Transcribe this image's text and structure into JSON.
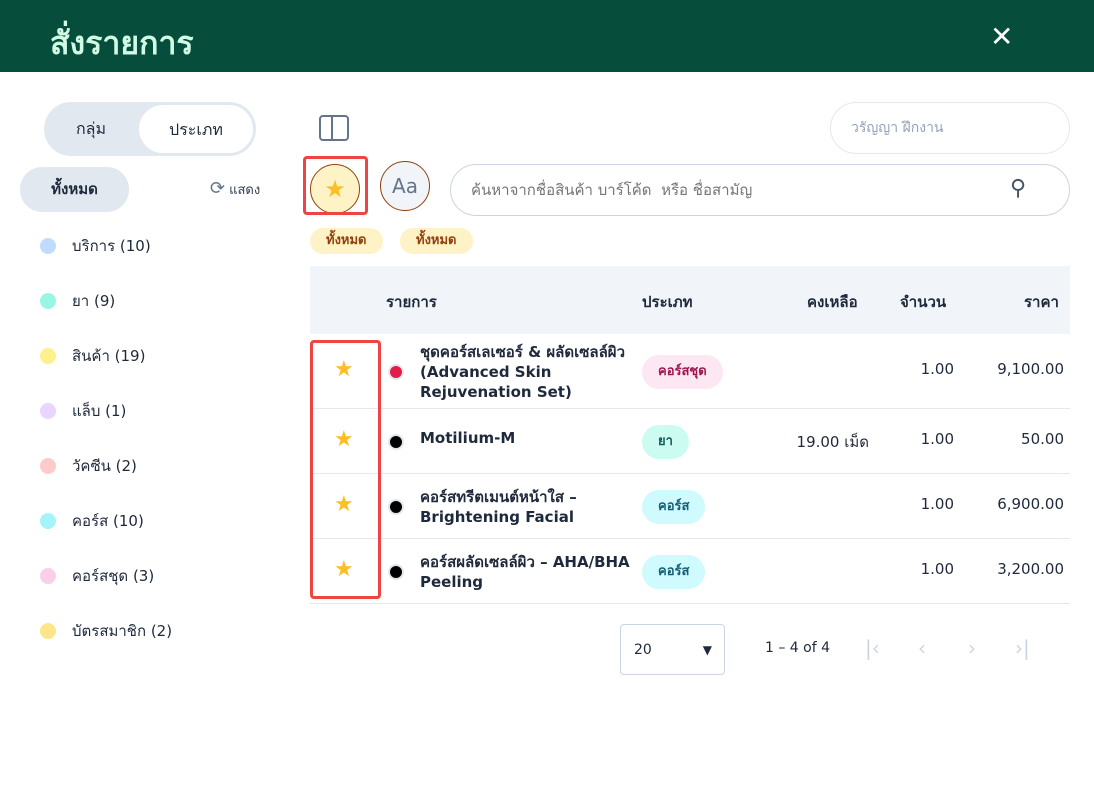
{
  "header": {
    "title": "สั่งรายการ",
    "close_icon": "close-icon"
  },
  "sidebar": {
    "toggle": [
      "กลุ่ม",
      "ประเภท"
    ],
    "all_label": "ทั้งหมด",
    "refresh_label": "แสดง",
    "categories": [
      {
        "label": "บริการ (10)",
        "color": "#bfdbfe"
      },
      {
        "label": "ยา (9)",
        "color": "#99f6e4"
      },
      {
        "label": "สินค้า (19)",
        "color": "#fef08a"
      },
      {
        "label": "แล็บ (1)",
        "color": "#e9d5ff"
      },
      {
        "label": "วัคซีน (2)",
        "color": "#fecaca"
      },
      {
        "label": "คอร์ส (10)",
        "color": "#a5f3fc"
      },
      {
        "label": "คอร์สชุด (3)",
        "color": "#fbcfe8"
      },
      {
        "label": "บัตรสมาชิก (2)",
        "color": "#fde68a"
      }
    ]
  },
  "toolbar": {
    "user_placeholder": "วรัญญา ฝึกงาน",
    "favorite_icon": "star-icon",
    "font_label": "Aa",
    "search_placeholder": "ค้นหาจากชื่อสินค้า บาร์โค้ด  หรือ ชื่อสามัญ",
    "chips": [
      "ทั้งหมด",
      "ทั้งหมด"
    ]
  },
  "table": {
    "columns": [
      "รายการ",
      "ประเภท",
      "คงเหลือ",
      "จำนวน",
      "ราคา"
    ],
    "rows": [
      {
        "name": "ชุดคอร์สเลเซอร์ & ผลัดเซลล์ผิว (Advanced Skin Rejuvenation Set)",
        "dot": "#e11d48",
        "type": "คอร์สชุด",
        "type_bg": "#fce7f3",
        "type_fg": "#9d174d",
        "stock": "",
        "qty": "1.00",
        "price": "9,100.00"
      },
      {
        "name": "Motilium-M",
        "dot": "#000000",
        "type": "ยา",
        "type_bg": "#ccfbf1",
        "type_fg": "#115e59",
        "stock": "19.00 เม็ด",
        "qty": "1.00",
        "price": "50.00"
      },
      {
        "name": "คอร์สทรีตเมนต์หน้าใส – Brightening Facial",
        "dot": "#000000",
        "type": "คอร์ส",
        "type_bg": "#cffafe",
        "type_fg": "#155e75",
        "stock": "",
        "qty": "1.00",
        "price": "6,900.00"
      },
      {
        "name": "คอร์สผลัดเซลล์ผิว – AHA/BHA Peeling",
        "dot": "#000000",
        "type": "คอร์ส",
        "type_bg": "#cffafe",
        "type_fg": "#155e75",
        "stock": "",
        "qty": "1.00",
        "price": "3,200.00"
      }
    ]
  },
  "pagination": {
    "page_size": "20",
    "range": "1 – 4 of 4"
  }
}
